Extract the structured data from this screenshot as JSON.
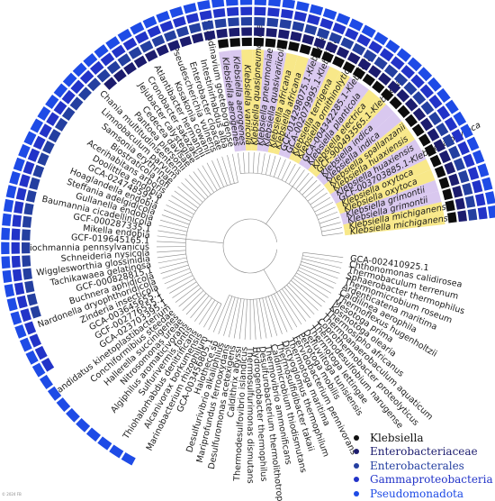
{
  "leaves": [
    {
      "label": "Klebsiella michiganensis",
      "group": "k",
      "bands": [
        1,
        1,
        1,
        1,
        1
      ]
    },
    {
      "label": "Klebsiella michiganensis",
      "group": "k",
      "bands": [
        1,
        1,
        1,
        1,
        1
      ]
    },
    {
      "label": "Klebsiella grimontii",
      "group": "k",
      "bands": [
        1,
        1,
        1,
        1,
        1
      ]
    },
    {
      "label": "Klebsiella grimontii",
      "group": "k",
      "bands": [
        1,
        1,
        1,
        1,
        1
      ]
    },
    {
      "label": "Klebsiella oxytoca",
      "group": "k",
      "bands": [
        1,
        1,
        1,
        1,
        1
      ]
    },
    {
      "label": "Klebsiella oxytoca",
      "group": "k",
      "bands": [
        1,
        1,
        1,
        1,
        1
      ]
    },
    {
      "label": "GCF-003703885.1-Klebsiella oxytoca",
      "group": "k",
      "bands": [
        1,
        1,
        1,
        1,
        1
      ]
    },
    {
      "label": "Klebsiella huaxiensis",
      "group": "k",
      "bands": [
        1,
        1,
        1,
        1,
        1
      ]
    },
    {
      "label": "Klebsiella huaxiensis",
      "group": "k",
      "bands": [
        1,
        1,
        1,
        1,
        1
      ]
    },
    {
      "label": "Klebsiella spallanzanii",
      "group": "k",
      "bands": [
        1,
        1,
        1,
        1,
        1
      ]
    },
    {
      "label": "Klebsiella indica",
      "group": "k",
      "bands": [
        1,
        1,
        1,
        1,
        1
      ]
    },
    {
      "label": "Klebsiella indica",
      "group": "k",
      "bands": [
        1,
        1,
        1,
        1,
        1
      ]
    },
    {
      "label": "GCF-900493565.1-Klebsiella",
      "group": "k",
      "bands": [
        1,
        1,
        1,
        1,
        1
      ]
    },
    {
      "label": "Klebsiella electrica",
      "group": "k",
      "bands": [
        1,
        1,
        1,
        1,
        1
      ]
    },
    {
      "label": "Klebsiella planticola",
      "group": "k",
      "bands": [
        1,
        1,
        1,
        1,
        1
      ]
    },
    {
      "label": "GCA-004342285.1-Klebsiella",
      "group": "k",
      "bands": [
        1,
        1,
        1,
        1,
        1
      ]
    },
    {
      "label": "Klebsiella ornithinolytica",
      "group": "k",
      "bands": [
        1,
        1,
        1,
        1,
        1
      ]
    },
    {
      "label": "Klebsiella terrigena",
      "group": "k",
      "bands": [
        1,
        1,
        1,
        1,
        1
      ]
    },
    {
      "label": "GCA-002079995.1-Klebsiella",
      "group": "k",
      "bands": [
        1,
        1,
        1,
        1,
        1
      ]
    },
    {
      "label": "GCF-014298075.1-Klebsiella",
      "group": "k",
      "bands": [
        1,
        1,
        1,
        1,
        1
      ]
    },
    {
      "label": "Klebsiella africana",
      "group": "k",
      "bands": [
        1,
        1,
        1,
        1,
        1
      ]
    },
    {
      "label": "Klebsiella africana",
      "group": "k",
      "bands": [
        1,
        1,
        1,
        1,
        1
      ]
    },
    {
      "label": "Klebsiella quasivariicola",
      "group": "k",
      "bands": [
        1,
        1,
        1,
        1,
        1
      ]
    },
    {
      "label": "Klebsiella pneumoniae",
      "group": "k",
      "bands": [
        1,
        1,
        1,
        1,
        1
      ]
    },
    {
      "label": "Klebsiella quasipneumoniae",
      "group": "k",
      "bands": [
        1,
        1,
        1,
        1,
        1
      ]
    },
    {
      "label": "Klebsiella variicola",
      "group": "k",
      "bands": [
        1,
        1,
        1,
        1,
        1
      ]
    },
    {
      "label": "Klebsiella aerogenes",
      "group": "k",
      "bands": [
        1,
        1,
        1,
        1,
        1
      ]
    },
    {
      "label": "Klebsiella aerogenes",
      "group": "k",
      "bands": [
        1,
        1,
        1,
        1,
        1
      ]
    },
    {
      "label": "Scandinavium goeteborgense",
      "group": "e",
      "bands": [
        0,
        1,
        1,
        1,
        1
      ]
    },
    {
      "label": "Intestinirhabdus alba",
      "group": "e",
      "bands": [
        0,
        1,
        1,
        1,
        1
      ]
    },
    {
      "label": "Enterobacter cloacae",
      "group": "e",
      "bands": [
        0,
        1,
        1,
        1,
        1
      ]
    },
    {
      "label": "Pseudescherichia vulneris",
      "group": "e",
      "bands": [
        0,
        1,
        1,
        1,
        1
      ]
    },
    {
      "label": "Kosakonia cowanii",
      "group": "e",
      "bands": [
        0,
        1,
        1,
        1,
        1
      ]
    },
    {
      "label": "Atlantibacter hermannii",
      "group": "e",
      "bands": [
        0,
        1,
        1,
        1,
        1
      ]
    },
    {
      "label": "Cronobacter sakazakii",
      "group": "e",
      "bands": [
        0,
        1,
        1,
        1,
        1
      ]
    },
    {
      "label": "Jejubacter calystegiae",
      "group": "e",
      "bands": [
        0,
        1,
        1,
        1,
        1
      ]
    },
    {
      "label": "Cedecea davisae",
      "group": "e",
      "bands": [
        0,
        1,
        1,
        1,
        1
      ]
    },
    {
      "label": "Pantoea piersonii",
      "group": "e",
      "bands": [
        0,
        1,
        1,
        1,
        1
      ]
    },
    {
      "label": "Chania multitudinisentens",
      "group": "e",
      "bands": [
        0,
        0,
        1,
        1,
        1
      ]
    },
    {
      "label": "Limnobaculum parvum",
      "group": "e",
      "bands": [
        0,
        0,
        1,
        1,
        1
      ]
    },
    {
      "label": "Samsonia erythrinae",
      "group": "e",
      "bands": [
        0,
        0,
        1,
        1,
        1
      ]
    },
    {
      "label": "Biostraticola tofi",
      "group": "e",
      "bands": [
        0,
        0,
        1,
        1,
        1
      ]
    },
    {
      "label": "Acerihabitans arboris",
      "group": "e",
      "bands": [
        0,
        0,
        1,
        1,
        1
      ]
    },
    {
      "label": "Doolittlea endobia",
      "group": "e",
      "bands": [
        0,
        0,
        1,
        1,
        1
      ]
    },
    {
      "label": "GCA-024748595.1",
      "group": "e",
      "bands": [
        0,
        0,
        1,
        1,
        1
      ]
    },
    {
      "label": "Hoaglandella endobia",
      "group": "e",
      "bands": [
        0,
        0,
        1,
        1,
        1
      ]
    },
    {
      "label": "Steffania adelgidicola",
      "group": "e",
      "bands": [
        0,
        0,
        1,
        1,
        1
      ]
    },
    {
      "label": "Gullanella endobia",
      "group": "e",
      "bands": [
        0,
        0,
        1,
        1,
        1
      ]
    },
    {
      "label": "Baumannia cicadellinicola",
      "group": "e",
      "bands": [
        0,
        0,
        1,
        1,
        1
      ]
    },
    {
      "label": "GCF-000287335.1",
      "group": "e",
      "bands": [
        0,
        0,
        1,
        1,
        1
      ]
    },
    {
      "label": "Mikella endobia",
      "group": "e",
      "bands": [
        0,
        0,
        1,
        1,
        1
      ]
    },
    {
      "label": "GCF-019645165.1",
      "group": "e",
      "bands": [
        0,
        0,
        1,
        1,
        1
      ]
    },
    {
      "label": "Biochmannia pennsylvanicus",
      "group": "e",
      "bands": [
        0,
        0,
        1,
        1,
        1
      ]
    },
    {
      "label": "Schneideria nysicola",
      "group": "e",
      "bands": [
        0,
        0,
        1,
        1,
        1
      ]
    },
    {
      "label": "Wigglesworthia glossinidia",
      "group": "e",
      "bands": [
        0,
        0,
        1,
        1,
        1
      ]
    },
    {
      "label": "Tachikawaea gelatinosa",
      "group": "e",
      "bands": [
        0,
        0,
        1,
        1,
        1
      ]
    },
    {
      "label": "GCF-000828815.1",
      "group": "e",
      "bands": [
        0,
        0,
        1,
        1,
        1
      ]
    },
    {
      "label": "Buchnera aphidicola",
      "group": "e",
      "bands": [
        0,
        0,
        1,
        1,
        1
      ]
    },
    {
      "label": "Nardonella dryophthoridicola",
      "group": "e",
      "bands": [
        0,
        0,
        0,
        1,
        1
      ]
    },
    {
      "label": "Zinderia insecticola",
      "group": "e",
      "bands": [
        0,
        0,
        0,
        1,
        1
      ]
    },
    {
      "label": "GCA-003645655.1",
      "group": "e",
      "bands": [
        0,
        0,
        0,
        1,
        1
      ]
    },
    {
      "label": "GCF-002776555.1",
      "group": "e",
      "bands": [
        0,
        0,
        0,
        1,
        1
      ]
    },
    {
      "label": "GCA-023703395.1",
      "group": "e",
      "bands": [
        0,
        0,
        0,
        0,
        1
      ]
    },
    {
      "label": "Candidatus kinetoplastibacterium",
      "group": "e",
      "bands": [
        0,
        0,
        0,
        0,
        1
      ]
    },
    {
      "label": "Conchiformibius steedae",
      "group": "e",
      "bands": [
        0,
        0,
        0,
        0,
        1
      ]
    },
    {
      "label": "Hallerella succinigenes",
      "group": "e",
      "bands": [
        0,
        0,
        0,
        0,
        1
      ]
    },
    {
      "label": "Nitrosomonas ureae",
      "group": "e",
      "bands": [
        0,
        0,
        0,
        0,
        1
      ]
    },
    {
      "label": "Algiphilus aromaticivorans",
      "group": "e",
      "bands": [
        0,
        0,
        0,
        0,
        1
      ]
    },
    {
      "label": "Sulfurivermis fontis",
      "group": "e",
      "bands": [
        0,
        0,
        0,
        0,
        1
      ]
    },
    {
      "label": "Thiohalorhabdus denitrificans",
      "group": "e",
      "bands": [
        0,
        0,
        0,
        0,
        1
      ]
    },
    {
      "label": "Alcanivorax borkumensis",
      "group": "e",
      "bands": [
        0,
        0,
        0,
        0,
        1
      ]
    },
    {
      "label": "Marinobacterium rhizophilum",
      "group": "e",
      "bands": [
        0,
        0,
        0,
        0,
        0
      ]
    },
    {
      "label": "GCA-003456805.1",
      "group": "o",
      "bands": [
        0,
        0,
        0,
        0,
        0
      ]
    },
    {
      "label": "Halothece sp",
      "group": "o",
      "bands": [
        0,
        0,
        0,
        0,
        0
      ]
    },
    {
      "label": "Desulfurivibrio alkaliphilus",
      "group": "o",
      "bands": [
        0,
        0,
        0,
        0,
        0
      ]
    },
    {
      "label": "Mariprofundus ferrooxydans",
      "group": "o",
      "bands": [
        0,
        0,
        0,
        0,
        0
      ]
    },
    {
      "label": "Desulfuromonas acetexigens",
      "group": "o",
      "bands": [
        0,
        0,
        0,
        0,
        0
      ]
    },
    {
      "label": "Caldithrix abyssi",
      "group": "o",
      "bands": [
        0,
        0,
        0,
        0,
        0
      ]
    },
    {
      "label": "Thermodesulfovibrio islandicus",
      "group": "o",
      "bands": [
        0,
        0,
        0,
        0,
        0
      ]
    },
    {
      "label": "Thermosulfurimonas dismutans",
      "group": "o",
      "bands": [
        0,
        0,
        0,
        0,
        0
      ]
    },
    {
      "label": "Hydrogenobacter thermophilus",
      "group": "o",
      "bands": [
        0,
        0,
        0,
        0,
        0
      ]
    },
    {
      "label": "Desulfurobacterium thermolithotrophum",
      "group": "o",
      "bands": [
        0,
        0,
        0,
        0,
        0
      ]
    },
    {
      "label": "Thermovibrio ammonificans",
      "group": "o",
      "bands": [
        0,
        0,
        0,
        0,
        0
      ]
    },
    {
      "label": "Caldimicrobium thiodismutans",
      "group": "o",
      "bands": [
        0,
        0,
        0,
        0,
        0
      ]
    },
    {
      "label": "Thermosulfidibacter takaii",
      "group": "o",
      "bands": [
        0,
        0,
        0,
        0,
        0
      ]
    },
    {
      "label": "Dictyoglomus thermophilum",
      "group": "o",
      "bands": [
        0,
        0,
        0,
        0,
        0
      ]
    },
    {
      "label": "Thermotoga maritima",
      "group": "o",
      "bands": [
        0,
        0,
        0,
        0,
        0
      ]
    },
    {
      "label": "Fervidobacterium pennivorans",
      "group": "o",
      "bands": [
        0,
        0,
        0,
        0,
        0
      ]
    },
    {
      "label": "Petrotoga mobilis",
      "group": "o",
      "bands": [
        0,
        0,
        0,
        0,
        0
      ]
    },
    {
      "label": "Defluviitoga tunisiensis",
      "group": "o",
      "bands": [
        0,
        0,
        0,
        0,
        0
      ]
    },
    {
      "label": "Thermotoga lettingae",
      "group": "o",
      "bands": [
        0,
        0,
        0,
        0,
        0
      ]
    },
    {
      "label": "Thermodesulfobium narugense",
      "group": "o",
      "bands": [
        0,
        0,
        0,
        0,
        0
      ]
    },
    {
      "label": "Coprothermobacter proteolyticus",
      "group": "o",
      "bands": [
        0,
        0,
        0,
        0,
        0
      ]
    },
    {
      "label": "Thermoanaerobaculum aquaticum",
      "group": "o",
      "bands": [
        0,
        0,
        0,
        0,
        0
      ]
    },
    {
      "label": "Thermosipho africanus",
      "group": "o",
      "bands": [
        0,
        0,
        0,
        0,
        0
      ]
    },
    {
      "label": "Kosmotoga olearia",
      "group": "o",
      "bands": [
        0,
        0,
        0,
        0,
        0
      ]
    },
    {
      "label": "Mesotoga prima",
      "group": "o",
      "bands": [
        0,
        0,
        0,
        0,
        0
      ]
    },
    {
      "label": "Thermoflexus hugenholtzii",
      "group": "o",
      "bands": [
        0,
        0,
        0,
        0,
        0
      ]
    },
    {
      "label": "Caldilinea aerophila",
      "group": "o",
      "bands": [
        0,
        0,
        0,
        0,
        0
      ]
    },
    {
      "label": "Ardenticatena maritima",
      "group": "o",
      "bands": [
        0,
        0,
        0,
        0,
        0
      ]
    },
    {
      "label": "Thermomicrobium roseum",
      "group": "o",
      "bands": [
        0,
        0,
        0,
        0,
        0
      ]
    },
    {
      "label": "Sphaerobacter thermophilus",
      "group": "o",
      "bands": [
        0,
        0,
        0,
        0,
        0
      ]
    },
    {
      "label": "Thermobaculum terrenum",
      "group": "o",
      "bands": [
        0,
        0,
        0,
        0,
        0
      ]
    },
    {
      "label": "Chthonomonas calidirosea",
      "group": "o",
      "bands": [
        0,
        0,
        0,
        0,
        0
      ]
    },
    {
      "label": "GCA-002410925.1",
      "group": "o",
      "bands": [
        0,
        0,
        0,
        0,
        0
      ]
    }
  ],
  "legend": [
    {
      "label": "Klebsiella",
      "color": "#111111"
    },
    {
      "label": "Enterobacteriaceae",
      "color": "#1c1c6e"
    },
    {
      "label": "Enterobacterales",
      "color": "#243fa0"
    },
    {
      "label": "Gammaproteobacteria",
      "color": "#2233c8"
    },
    {
      "label": "Pseudomonadota",
      "color": "#1e4be6"
    }
  ],
  "colors": {
    "highlight_yellow": "#f8e889",
    "highlight_lavender": "#d9c8ef",
    "branch": "#8a8a8a",
    "band_colors": [
      "#0d0d0d",
      "#1c1c6e",
      "#243fa0",
      "#2233c8",
      "#1e4be6"
    ]
  },
  "watermark": "© 2024 FB"
}
